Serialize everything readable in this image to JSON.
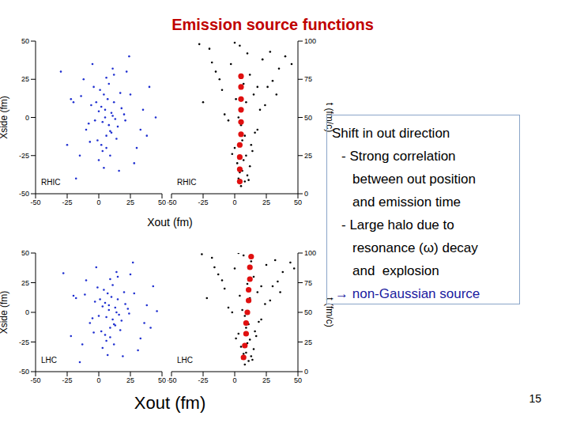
{
  "title": "Emission source functions",
  "page_number": 15,
  "text_box": {
    "heading": "Shift in out direction",
    "items": [
      [
        "- Strong correlation",
        "between out position",
        "and emission time"
      ],
      [
        "- Large halo due to",
        "resonance (ω) decay",
        "and  explosion"
      ]
    ],
    "conclusion": "→ non-Gaussian source"
  },
  "chart_data": [
    {
      "type": "scatter",
      "annotation": "RHIC",
      "x_label": "Xout (fm)",
      "y_label": "Xside (fm)",
      "xlim": [
        -50,
        50
      ],
      "xticks": [
        -50,
        -25,
        0,
        25,
        50
      ],
      "ylim": [
        -50,
        50
      ],
      "yticks": [
        -50,
        -25,
        0,
        25,
        50
      ],
      "grid": false,
      "series": [
        {
          "color": "#1f2fd0",
          "marker": "point",
          "x": [
            5,
            8,
            2,
            10,
            -3,
            12,
            6,
            0,
            15,
            -6,
            4,
            9,
            -1,
            7,
            3,
            11,
            -8,
            18,
            1,
            14,
            6,
            -4,
            20,
            -10,
            8,
            2,
            13,
            -2,
            5,
            10,
            25,
            -20,
            30,
            -15,
            22,
            35,
            -25,
            28,
            40,
            -30,
            16,
            -12,
            33,
            24,
            -18,
            12,
            -5,
            38,
            -22,
            45,
            0,
            6,
            9,
            3,
            -7,
            17,
            11,
            -14,
            21,
            4
          ],
          "values": [
            0,
            -5,
            7,
            3,
            -2,
            10,
            -12,
            4,
            -6,
            8,
            15,
            -9,
            -15,
            12,
            -3,
            1,
            -4,
            6,
            18,
            -14,
            -20,
            20,
            2,
            -8,
            22,
            -18,
            -1,
            10,
            5,
            -10,
            15,
            10,
            -20,
            -25,
            30,
            5,
            -18,
            -30,
            20,
            30,
            -35,
            25,
            -8,
            40,
            -40,
            28,
            35,
            -12,
            12,
            0,
            -28,
            26,
            -25,
            -22,
            -16,
            16,
            32,
            14,
            -2,
            -33
          ]
        }
      ]
    },
    {
      "type": "scatter",
      "annotation": "RHIC",
      "y2_label": "t (fm/c)",
      "xlim": [
        -50,
        50
      ],
      "xticks": [
        -50,
        -25,
        0,
        25,
        50
      ],
      "y2lim": [
        0,
        100
      ],
      "y2ticks": [
        0,
        25,
        50,
        75,
        100
      ],
      "grid": false,
      "series": [
        {
          "color": "#000000",
          "marker": "point",
          "axis": "y2",
          "x": [
            5,
            8,
            3,
            10,
            6,
            12,
            2,
            7,
            9,
            4,
            14,
            0,
            11,
            6,
            8,
            -2,
            16,
            5,
            13,
            3,
            18,
            -5,
            20,
            9,
            -8,
            24,
            1,
            15,
            -10,
            26,
            7,
            -12,
            30,
            12,
            -15,
            35,
            -3,
            22,
            -18,
            40,
            10,
            -20,
            28,
            4,
            -25,
            33,
            18,
            -28,
            45,
            0
          ],
          "values": [
            5,
            8,
            10,
            12,
            15,
            18,
            20,
            22,
            25,
            14,
            28,
            30,
            9,
            35,
            38,
            26,
            40,
            45,
            32,
            50,
            42,
            48,
            55,
            60,
            52,
            58,
            62,
            65,
            68,
            70,
            72,
            75,
            74,
            78,
            80,
            82,
            85,
            88,
            86,
            90,
            92,
            95,
            93,
            97,
            60,
            65,
            70,
            98,
            85,
            99
          ]
        },
        {
          "color": "#e01010",
          "marker": "circle",
          "axis": "y2",
          "x": [
            5,
            5,
            5,
            5,
            5,
            5,
            4,
            4,
            4,
            4
          ],
          "values": [
            77,
            70,
            62,
            55,
            47,
            39,
            32,
            24,
            16,
            8
          ]
        }
      ]
    },
    {
      "type": "scatter",
      "annotation": "LHC",
      "x_label": "Xout (fm)",
      "y_label": "Xside (fm)",
      "xlim": [
        -50,
        50
      ],
      "xticks": [
        -50,
        -25,
        0,
        25,
        50
      ],
      "ylim": [
        -50,
        50
      ],
      "yticks": [
        -50,
        -25,
        0,
        25,
        50
      ],
      "grid": false,
      "series": [
        {
          "color": "#1f2fd0",
          "marker": "point",
          "x": [
            8,
            11,
            5,
            13,
            0,
            15,
            9,
            3,
            18,
            -3,
            7,
            12,
            2,
            10,
            6,
            14,
            -5,
            21,
            4,
            17,
            9,
            -1,
            23,
            -7,
            11,
            5,
            16,
            1,
            8,
            13,
            28,
            -18,
            33,
            -13,
            25,
            38,
            -22,
            31,
            43,
            -28,
            19,
            -10,
            36,
            27,
            -15,
            15,
            -2,
            41,
            -20,
            46,
            3,
            9,
            12,
            6,
            -4,
            20,
            14,
            -11,
            24,
            7
          ],
          "values": [
            2,
            -6,
            8,
            4,
            -3,
            11,
            -13,
            5,
            -7,
            9,
            16,
            -10,
            -16,
            13,
            -4,
            0,
            -5,
            7,
            19,
            -15,
            -21,
            21,
            3,
            -9,
            23,
            -19,
            -2,
            11,
            6,
            -11,
            16,
            12,
            -22,
            -27,
            32,
            6,
            -20,
            -32,
            22,
            33,
            -37,
            27,
            -9,
            42,
            -42,
            30,
            38,
            -13,
            14,
            1,
            -30,
            28,
            -27,
            -24,
            -17,
            17,
            34,
            15,
            -1,
            -36
          ]
        }
      ]
    },
    {
      "type": "scatter",
      "annotation": "LHC",
      "y2_label": "t (fm/c)",
      "xlim": [
        -50,
        50
      ],
      "xticks": [
        -50,
        -25,
        0,
        25,
        50
      ],
      "y2lim": [
        0,
        100
      ],
      "y2ticks": [
        0,
        25,
        50,
        75,
        100
      ],
      "grid": false,
      "series": [
        {
          "color": "#000000",
          "marker": "point",
          "axis": "y2",
          "x": [
            8,
            11,
            6,
            13,
            9,
            15,
            5,
            10,
            12,
            7,
            17,
            3,
            14,
            9,
            11,
            1,
            19,
            8,
            16,
            6,
            21,
            -2,
            24,
            12,
            -5,
            28,
            4,
            18,
            -8,
            30,
            10,
            -10,
            34,
            15,
            -13,
            38,
            0,
            25,
            -16,
            44,
            13,
            -18,
            32,
            7,
            -22,
            36,
            21,
            -26,
            47,
            3
          ],
          "values": [
            6,
            9,
            11,
            13,
            16,
            19,
            21,
            24,
            27,
            15,
            30,
            32,
            10,
            37,
            40,
            28,
            42,
            47,
            34,
            52,
            44,
            50,
            57,
            62,
            54,
            60,
            64,
            67,
            70,
            72,
            74,
            77,
            76,
            80,
            82,
            84,
            87,
            90,
            88,
            92,
            93,
            96,
            94,
            98,
            62,
            67,
            72,
            99,
            87,
            100
          ]
        },
        {
          "color": "#e01010",
          "marker": "circle",
          "axis": "y2",
          "x": [
            13,
            12,
            12,
            11,
            11,
            10,
            9,
            9,
            8,
            7
          ],
          "values": [
            97,
            88,
            78,
            69,
            60,
            50,
            41,
            32,
            22,
            12
          ]
        }
      ]
    }
  ]
}
